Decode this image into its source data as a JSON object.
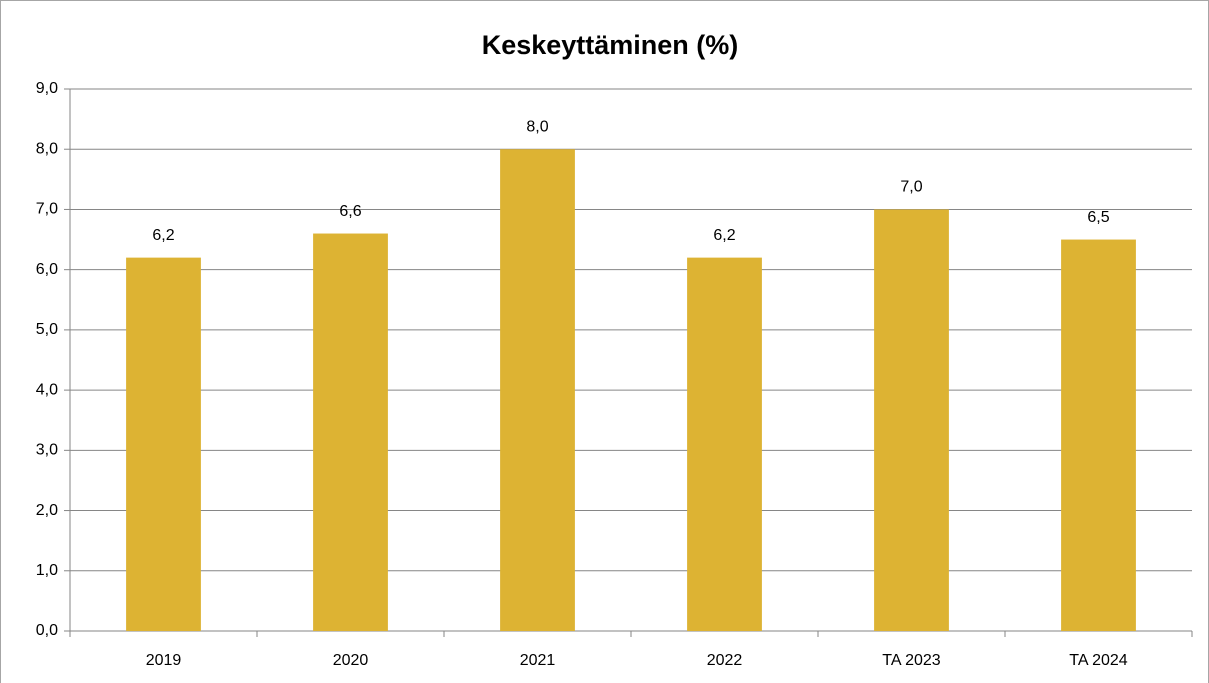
{
  "chart_data": {
    "type": "bar",
    "title": "Keskeyttäminen (%)",
    "categories": [
      "2019",
      "2020",
      "2021",
      "2022",
      "TA 2023",
      "TA 2024"
    ],
    "values": [
      6.2,
      6.6,
      8.0,
      6.2,
      7.0,
      6.5
    ],
    "value_labels": [
      "6,2",
      "6,6",
      "8,0",
      "6,2",
      "7,0",
      "6,5"
    ],
    "color": "#ddb333",
    "ylim": [
      0,
      9
    ],
    "yticks": [
      {
        "value": 0,
        "label": "0,0"
      },
      {
        "value": 1,
        "label": "1,0"
      },
      {
        "value": 2,
        "label": "2,0"
      },
      {
        "value": 3,
        "label": "3,0"
      },
      {
        "value": 4,
        "label": "4,0"
      },
      {
        "value": 5,
        "label": "5,0"
      },
      {
        "value": 6,
        "label": "6,0"
      },
      {
        "value": 7,
        "label": "7,0"
      },
      {
        "value": 8,
        "label": "8,0"
      },
      {
        "value": 9,
        "label": "9,0"
      }
    ],
    "grid": true
  }
}
